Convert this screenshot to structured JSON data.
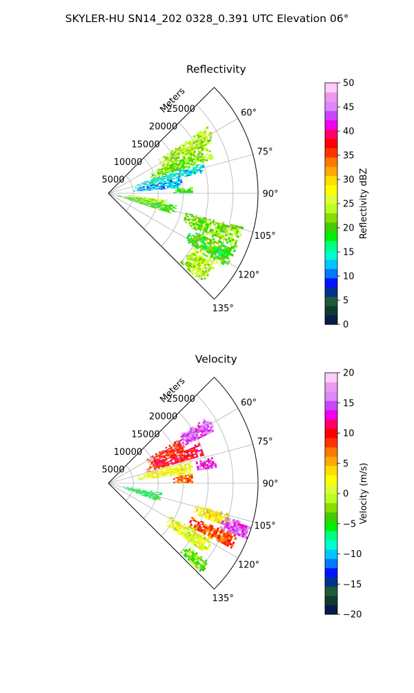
{
  "figure": {
    "title": "SKYLER-HU  SN14_202  0328_0.391 UTC Elevation 06°"
  },
  "chart_data": [
    {
      "type": "heatmap",
      "title": "Reflectivity",
      "projection": "polar sector",
      "r_label": "Meters",
      "r_ticks": [
        5000,
        10000,
        15000,
        20000,
        25000
      ],
      "r_tick_labels": [
        "5000",
        "10000",
        "15000",
        "20000",
        "25000"
      ],
      "r_range": [
        0,
        30000
      ],
      "theta_range": [
        45,
        135
      ],
      "theta_ticks": [
        60,
        75,
        90,
        105,
        120,
        135
      ],
      "theta_tick_labels": [
        "60°",
        "75°",
        "90°",
        "105°",
        "120°",
        "135°"
      ],
      "grid": true,
      "colorbar": {
        "label": "Reflectivity dBZ",
        "range": [
          0,
          50
        ],
        "ticks": [
          0,
          5,
          10,
          15,
          20,
          25,
          30,
          35,
          40,
          45,
          50
        ],
        "tick_labels": [
          "0",
          "5",
          "10",
          "15",
          "20",
          "25",
          "30",
          "35",
          "40",
          "45",
          "50"
        ],
        "colors": [
          "#0a1a4a",
          "#0d3a2e",
          "#1e5a38",
          "#00338a",
          "#0015ff",
          "#0078ff",
          "#00c8ff",
          "#00ffcc",
          "#00ff80",
          "#00ee00",
          "#44cc00",
          "#88dd00",
          "#bbff22",
          "#ddff33",
          "#ffff00",
          "#ffdd00",
          "#ffaa00",
          "#ff7700",
          "#ff3300",
          "#ff0000",
          "#ff0066",
          "#ee00ee",
          "#cc44ff",
          "#dd88ff",
          "#ee99ee",
          "#ffccff"
        ]
      },
      "echo_regions": [
        {
          "theta": [
            56,
            64
          ],
          "r": [
            12000,
            24000
          ],
          "value": 24
        },
        {
          "theta": [
            64,
            72
          ],
          "r": [
            9000,
            22000
          ],
          "value": 22
        },
        {
          "theta": [
            72,
            78
          ],
          "r": [
            6000,
            20000
          ],
          "value": 14
        },
        {
          "theta": [
            78,
            86
          ],
          "r": [
            5000,
            15000
          ],
          "value": 12
        },
        {
          "theta": [
            86,
            90
          ],
          "r": [
            13000,
            17000
          ],
          "value": 20
        },
        {
          "theta": [
            96,
            102
          ],
          "r": [
            4000,
            12000
          ],
          "value": 24
        },
        {
          "theta": [
            100,
            108
          ],
          "r": [
            2000,
            14000
          ],
          "value": 20
        },
        {
          "theta": [
            104,
            112
          ],
          "r": [
            16000,
            28000
          ],
          "value": 22
        },
        {
          "theta": [
            112,
            122
          ],
          "r": [
            18000,
            28000
          ],
          "value": 20
        },
        {
          "theta": [
            122,
            134
          ],
          "r": [
            20000,
            26000
          ],
          "value": 24
        }
      ]
    },
    {
      "type": "heatmap",
      "title": "Velocity",
      "projection": "polar sector",
      "r_label": "Meters",
      "r_ticks": [
        5000,
        10000,
        15000,
        20000,
        25000
      ],
      "r_tick_labels": [
        "5000",
        "10000",
        "15000",
        "20000",
        "25000"
      ],
      "r_range": [
        0,
        30000
      ],
      "theta_range": [
        45,
        135
      ],
      "theta_ticks": [
        60,
        75,
        90,
        105,
        120,
        135
      ],
      "theta_tick_labels": [
        "60°",
        "75°",
        "90°",
        "105°",
        "120°",
        "135°"
      ],
      "grid": true,
      "colorbar": {
        "label": "Velocity (m/s)",
        "range": [
          -20,
          20
        ],
        "ticks": [
          -20,
          -15,
          -10,
          -5,
          0,
          5,
          10,
          15,
          20
        ],
        "tick_labels": [
          "−20",
          "−15",
          "−10",
          "−5",
          "0",
          "5",
          "10",
          "15",
          "20"
        ],
        "colors": [
          "#0a1a4a",
          "#0d3a2e",
          "#1e5a38",
          "#00338a",
          "#0015ff",
          "#0078ff",
          "#00c8ff",
          "#00ffcc",
          "#00ff80",
          "#00ee00",
          "#44cc00",
          "#88dd00",
          "#bbff22",
          "#ddff33",
          "#ffff00",
          "#ffdd00",
          "#ffaa00",
          "#ff7700",
          "#ff3300",
          "#ff0000",
          "#ff0066",
          "#ee00ee",
          "#cc44ff",
          "#dd88ff",
          "#ee99ee",
          "#ffccff"
        ]
      },
      "echo_regions": [
        {
          "theta": [
            56,
            64
          ],
          "r": [
            16000,
            24000
          ],
          "value": 15
        },
        {
          "theta": [
            58,
            68
          ],
          "r": [
            9000,
            17000
          ],
          "value": 9
        },
        {
          "theta": [
            66,
            74
          ],
          "r": [
            8000,
            20000
          ],
          "value": 10
        },
        {
          "theta": [
            74,
            84
          ],
          "r": [
            6000,
            17000
          ],
          "value": 2
        },
        {
          "theta": [
            76,
            82
          ],
          "r": [
            18000,
            22000
          ],
          "value": 14
        },
        {
          "theta": [
            84,
            90
          ],
          "r": [
            13000,
            17000
          ],
          "value": 7
        },
        {
          "theta": [
            100,
            110
          ],
          "r": [
            3000,
            11000
          ],
          "value": -6
        },
        {
          "theta": [
            104,
            110
          ],
          "r": [
            18000,
            26000
          ],
          "value": 3
        },
        {
          "theta": [
            106,
            112
          ],
          "r": [
            24000,
            30000
          ],
          "value": 15
        },
        {
          "theta": [
            112,
            118
          ],
          "r": [
            18000,
            28000
          ],
          "value": 8
        },
        {
          "theta": [
            118,
            126
          ],
          "r": [
            14000,
            24000
          ],
          "value": 1
        },
        {
          "theta": [
            128,
            134
          ],
          "r": [
            20000,
            26000
          ],
          "value": -3
        }
      ]
    }
  ]
}
